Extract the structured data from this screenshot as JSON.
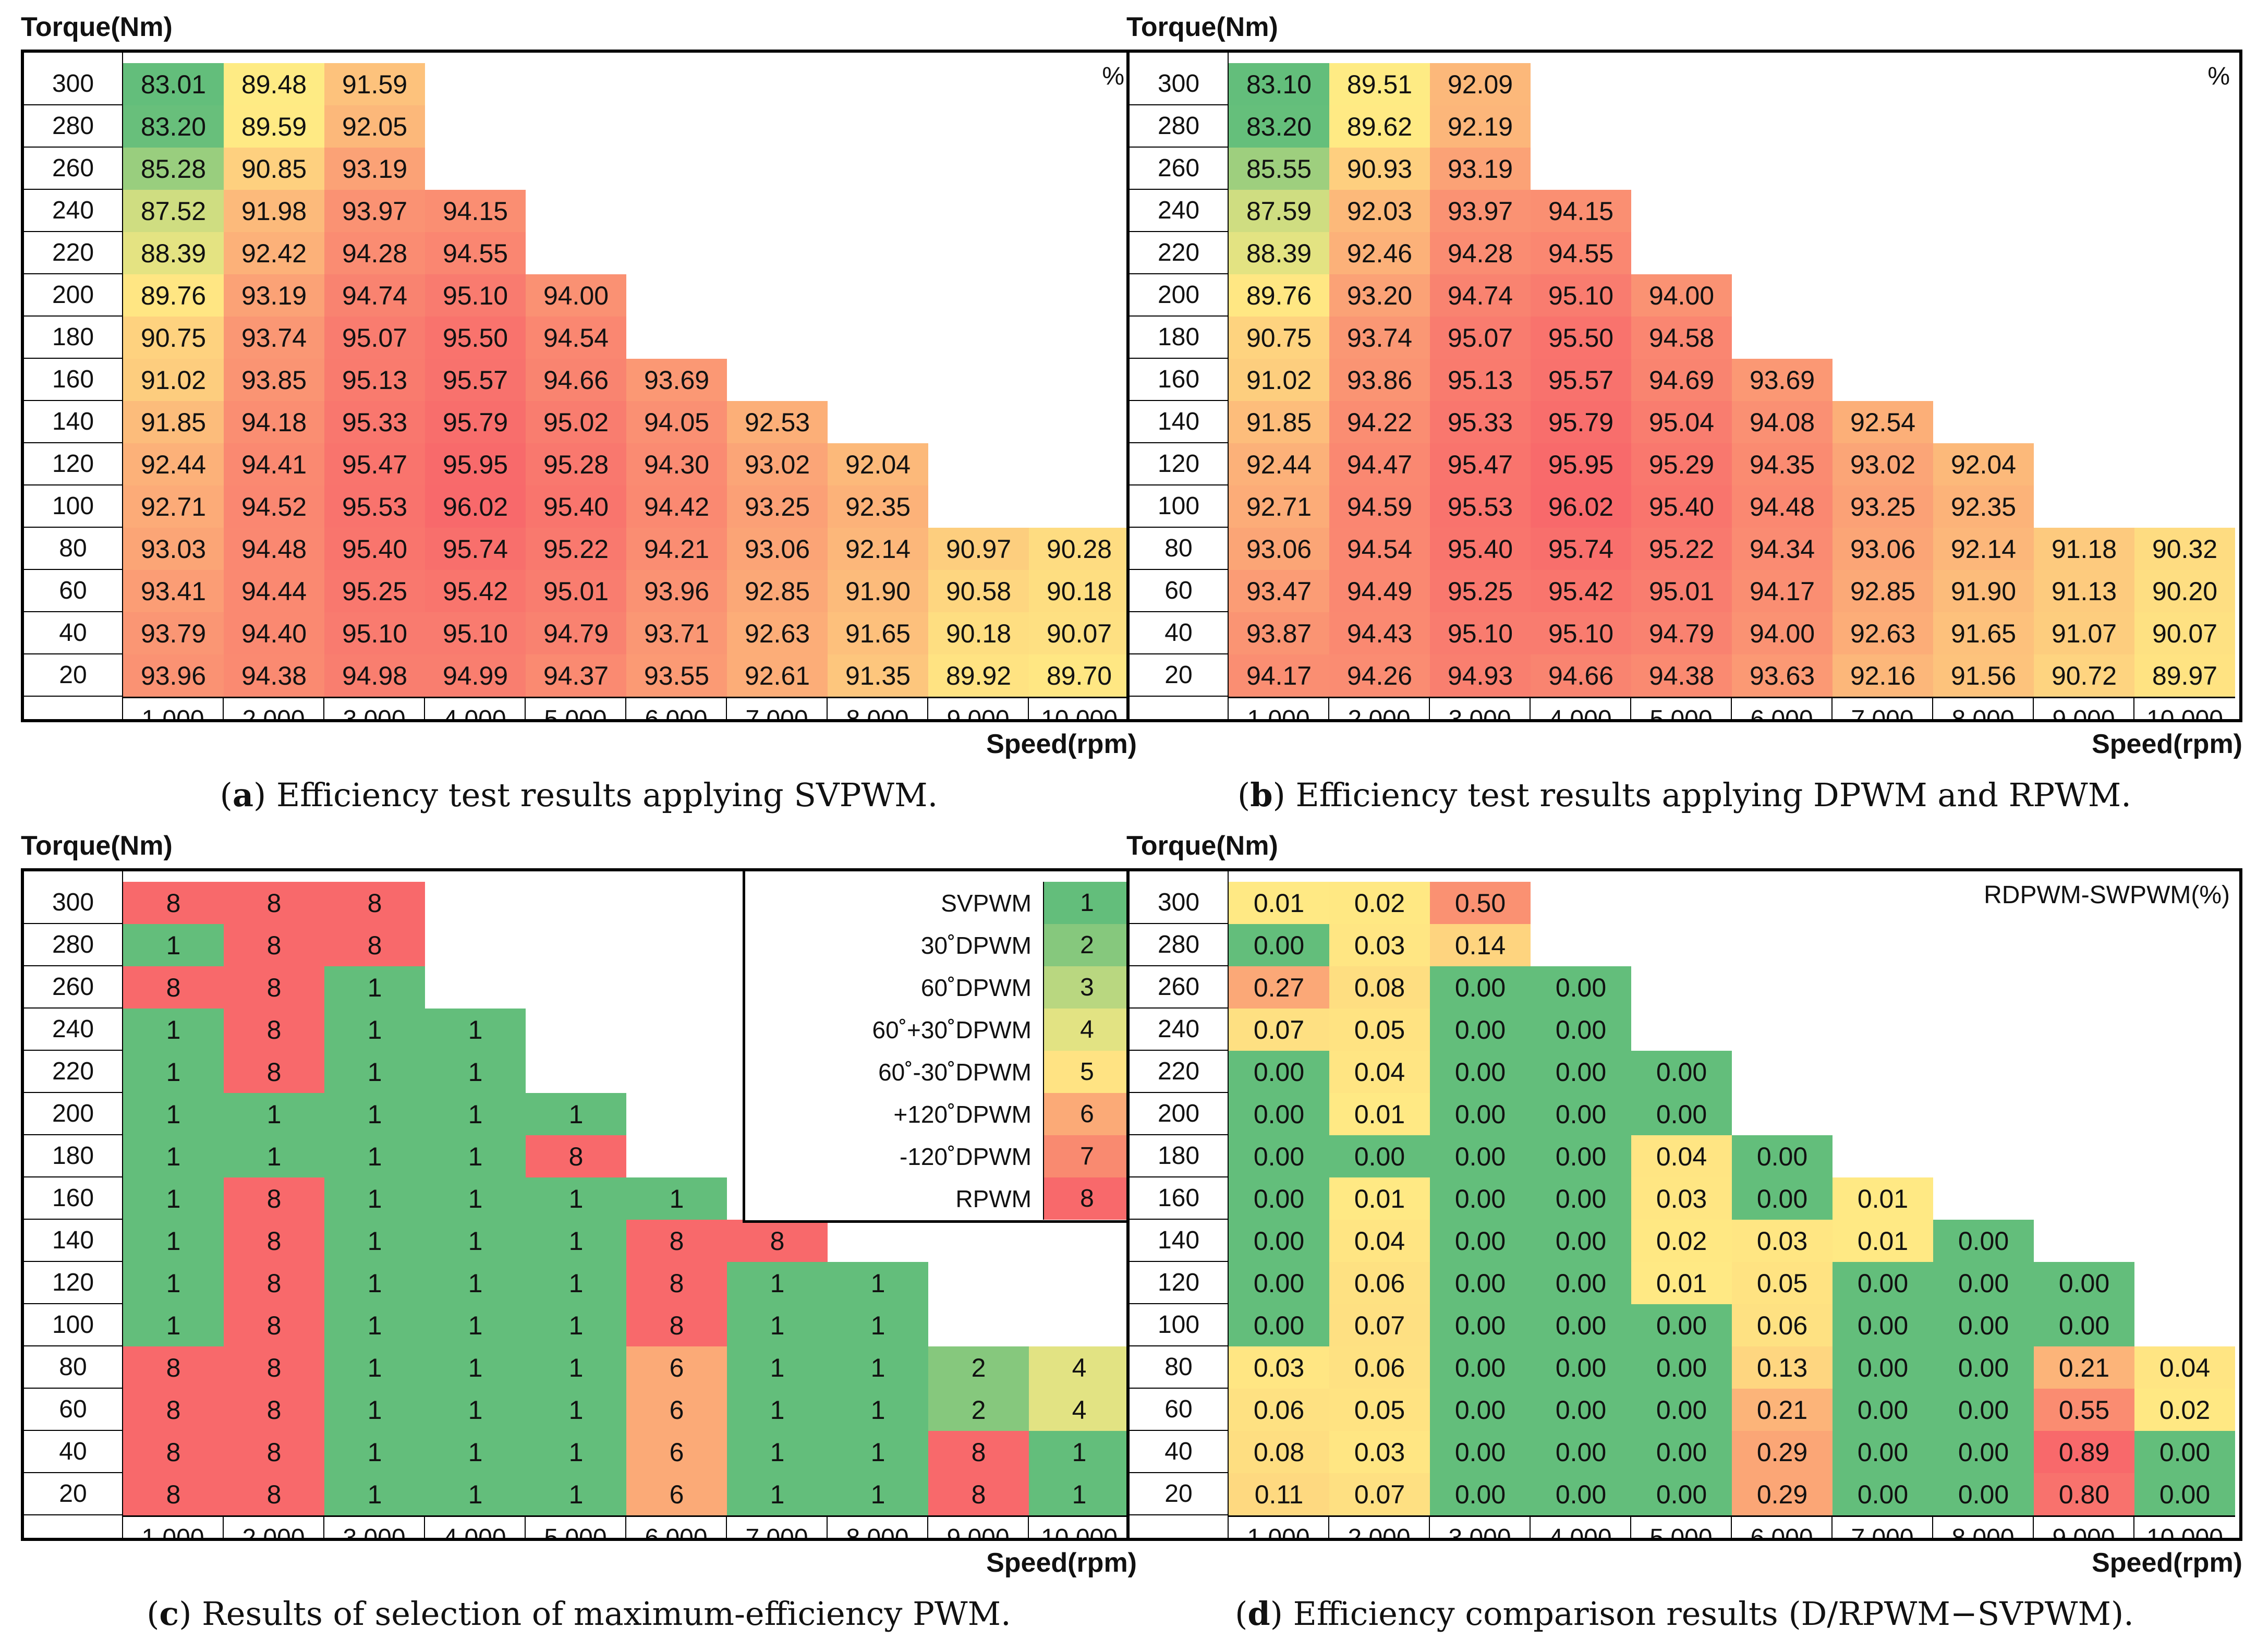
{
  "colors": {
    "green": "#63BE7B",
    "yellow": "#FFEB84",
    "red": "#F8696B"
  },
  "chart_data": [
    {
      "id": "a",
      "type": "heatmap",
      "title": "Efficiency test results applying SVPWM.",
      "caption_letter": "a",
      "ylabel": "Torque(Nm)",
      "xlabel": "Speed(rpm)",
      "unit": "%",
      "y": [
        "300",
        "280",
        "260",
        "240",
        "220",
        "200",
        "180",
        "160",
        "140",
        "120",
        "100",
        "80",
        "60",
        "40",
        "20"
      ],
      "x": [
        "1,000",
        "2,000",
        "3,000",
        "4,000",
        "5,000",
        "6,000",
        "7,000",
        "8,000",
        "9,000",
        "10,000"
      ],
      "values": [
        [
          83.01,
          89.48,
          91.59,
          null,
          null,
          null,
          null,
          null,
          null,
          null
        ],
        [
          83.2,
          89.59,
          92.05,
          null,
          null,
          null,
          null,
          null,
          null,
          null
        ],
        [
          85.28,
          90.85,
          93.19,
          null,
          null,
          null,
          null,
          null,
          null,
          null
        ],
        [
          87.52,
          91.98,
          93.97,
          94.15,
          null,
          null,
          null,
          null,
          null,
          null
        ],
        [
          88.39,
          92.42,
          94.28,
          94.55,
          null,
          null,
          null,
          null,
          null,
          null
        ],
        [
          89.76,
          93.19,
          94.74,
          95.1,
          94.0,
          null,
          null,
          null,
          null,
          null
        ],
        [
          90.75,
          93.74,
          95.07,
          95.5,
          94.54,
          null,
          null,
          null,
          null,
          null
        ],
        [
          91.02,
          93.85,
          95.13,
          95.57,
          94.66,
          93.69,
          null,
          null,
          null,
          null
        ],
        [
          91.85,
          94.18,
          95.33,
          95.79,
          95.02,
          94.05,
          92.53,
          null,
          null,
          null
        ],
        [
          92.44,
          94.41,
          95.47,
          95.95,
          95.28,
          94.3,
          93.02,
          92.04,
          null,
          null
        ],
        [
          92.71,
          94.52,
          95.53,
          96.02,
          95.4,
          94.42,
          93.25,
          92.35,
          null,
          null
        ],
        [
          93.03,
          94.48,
          95.4,
          95.74,
          95.22,
          94.21,
          93.06,
          92.14,
          90.97,
          90.28
        ],
        [
          93.41,
          94.44,
          95.25,
          95.42,
          95.01,
          93.96,
          92.85,
          91.9,
          90.58,
          90.18
        ],
        [
          93.79,
          94.4,
          95.1,
          95.1,
          94.79,
          93.71,
          92.63,
          91.65,
          90.18,
          90.07
        ],
        [
          93.96,
          94.38,
          94.98,
          94.99,
          94.37,
          93.55,
          92.61,
          91.35,
          89.92,
          89.7
        ]
      ]
    },
    {
      "id": "b",
      "type": "heatmap",
      "title": "Efficiency test results applying DPWM and RPWM.",
      "caption_letter": "b",
      "ylabel": "Torque(Nm)",
      "xlabel": "Speed(rpm)",
      "unit": "%",
      "y": [
        "300",
        "280",
        "260",
        "240",
        "220",
        "200",
        "180",
        "160",
        "140",
        "120",
        "100",
        "80",
        "60",
        "40",
        "20"
      ],
      "x": [
        "1,000",
        "2,000",
        "3,000",
        "4,000",
        "5,000",
        "6,000",
        "7,000",
        "8,000",
        "9,000",
        "10,000"
      ],
      "values": [
        [
          83.1,
          89.51,
          92.09,
          null,
          null,
          null,
          null,
          null,
          null,
          null
        ],
        [
          83.2,
          89.62,
          92.19,
          null,
          null,
          null,
          null,
          null,
          null,
          null
        ],
        [
          85.55,
          90.93,
          93.19,
          null,
          null,
          null,
          null,
          null,
          null,
          null
        ],
        [
          87.59,
          92.03,
          93.97,
          94.15,
          null,
          null,
          null,
          null,
          null,
          null
        ],
        [
          88.39,
          92.46,
          94.28,
          94.55,
          null,
          null,
          null,
          null,
          null,
          null
        ],
        [
          89.76,
          93.2,
          94.74,
          95.1,
          94.0,
          null,
          null,
          null,
          null,
          null
        ],
        [
          90.75,
          93.74,
          95.07,
          95.5,
          94.58,
          null,
          null,
          null,
          null,
          null
        ],
        [
          91.02,
          93.86,
          95.13,
          95.57,
          94.69,
          93.69,
          null,
          null,
          null,
          null
        ],
        [
          91.85,
          94.22,
          95.33,
          95.79,
          95.04,
          94.08,
          92.54,
          null,
          null,
          null
        ],
        [
          92.44,
          94.47,
          95.47,
          95.95,
          95.29,
          94.35,
          93.02,
          92.04,
          null,
          null
        ],
        [
          92.71,
          94.59,
          95.53,
          96.02,
          95.4,
          94.48,
          93.25,
          92.35,
          null,
          null
        ],
        [
          93.06,
          94.54,
          95.4,
          95.74,
          95.22,
          94.34,
          93.06,
          92.14,
          91.18,
          90.32
        ],
        [
          93.47,
          94.49,
          95.25,
          95.42,
          95.01,
          94.17,
          92.85,
          91.9,
          91.13,
          90.2
        ],
        [
          93.87,
          94.43,
          95.1,
          95.1,
          94.79,
          94.0,
          92.63,
          91.65,
          91.07,
          90.07
        ],
        [
          94.17,
          94.26,
          94.93,
          94.66,
          94.38,
          93.63,
          92.16,
          91.56,
          90.72,
          89.97
        ]
      ]
    },
    {
      "id": "c",
      "type": "heatmap",
      "title": "Results of selection of maximum-efficiency PWM.",
      "caption_letter": "c",
      "ylabel": "Torque(Nm)",
      "xlabel": "Speed(rpm)",
      "y": [
        "300",
        "280",
        "260",
        "240",
        "220",
        "200",
        "180",
        "160",
        "140",
        "120",
        "100",
        "80",
        "60",
        "40",
        "20"
      ],
      "x": [
        "1,000",
        "2,000",
        "3,000",
        "4,000",
        "5,000",
        "6,000",
        "7,000",
        "8,000",
        "9,000",
        "10,000"
      ],
      "values": [
        [
          8,
          8,
          8,
          null,
          null,
          null,
          null,
          null,
          null,
          null
        ],
        [
          1,
          8,
          8,
          null,
          null,
          null,
          null,
          null,
          null,
          null
        ],
        [
          8,
          8,
          1,
          null,
          null,
          null,
          null,
          null,
          null,
          null
        ],
        [
          1,
          8,
          1,
          1,
          null,
          null,
          null,
          null,
          null,
          null
        ],
        [
          1,
          8,
          1,
          1,
          null,
          null,
          null,
          null,
          null,
          null
        ],
        [
          1,
          1,
          1,
          1,
          1,
          null,
          null,
          null,
          null,
          null
        ],
        [
          1,
          1,
          1,
          1,
          8,
          null,
          null,
          null,
          null,
          null
        ],
        [
          1,
          8,
          1,
          1,
          1,
          1,
          null,
          null,
          null,
          null
        ],
        [
          1,
          8,
          1,
          1,
          1,
          8,
          8,
          null,
          null,
          null
        ],
        [
          1,
          8,
          1,
          1,
          1,
          8,
          1,
          1,
          null,
          null
        ],
        [
          1,
          8,
          1,
          1,
          1,
          8,
          1,
          1,
          null,
          null
        ],
        [
          8,
          8,
          1,
          1,
          1,
          6,
          1,
          1,
          2,
          4
        ],
        [
          8,
          8,
          1,
          1,
          1,
          6,
          1,
          1,
          2,
          4
        ],
        [
          8,
          8,
          1,
          1,
          1,
          6,
          1,
          1,
          8,
          1
        ],
        [
          8,
          8,
          1,
          1,
          1,
          6,
          1,
          1,
          8,
          1
        ]
      ],
      "legend": [
        {
          "label": "SVPWM",
          "code": 1,
          "color": "#63BE7B"
        },
        {
          "label": "30˚DPWM",
          "code": 2,
          "color": "#86C87D"
        },
        {
          "label": "60˚DPWM",
          "code": 3,
          "color": "#B9D780"
        },
        {
          "label": "60˚+30˚DPWM",
          "code": 4,
          "color": "#E2E383"
        },
        {
          "label": "60˚-30˚DPWM",
          "code": 5,
          "color": "#FFE383"
        },
        {
          "label": "+120˚DPWM",
          "code": 6,
          "color": "#FBAA77"
        },
        {
          "label": "-120˚DPWM",
          "code": 7,
          "color": "#F98A70"
        },
        {
          "label": "RPWM",
          "code": 8,
          "color": "#F8696B"
        }
      ]
    },
    {
      "id": "d",
      "type": "heatmap",
      "title": "Efficiency comparison results (D/RPWM−SVPWM).",
      "caption_letter": "d",
      "ylabel": "Torque(Nm)",
      "xlabel": "Speed(rpm)",
      "unit": "RDPWM-SWPWM(%)",
      "y": [
        "300",
        "280",
        "260",
        "240",
        "220",
        "200",
        "180",
        "160",
        "140",
        "120",
        "100",
        "80",
        "60",
        "40",
        "20"
      ],
      "x": [
        "1,000",
        "2,000",
        "3,000",
        "4,000",
        "5,000",
        "6,000",
        "7,000",
        "8,000",
        "9,000",
        "10,000"
      ],
      "values": [
        [
          0.01,
          0.02,
          0.5,
          null,
          null,
          null,
          null,
          null,
          null,
          null
        ],
        [
          0.0,
          0.03,
          0.14,
          null,
          null,
          null,
          null,
          null,
          null,
          null
        ],
        [
          0.27,
          0.08,
          0.0,
          0.0,
          null,
          null,
          null,
          null,
          null,
          null
        ],
        [
          0.07,
          0.05,
          0.0,
          0.0,
          null,
          null,
          null,
          null,
          null,
          null
        ],
        [
          0.0,
          0.04,
          0.0,
          0.0,
          0.0,
          null,
          null,
          null,
          null,
          null
        ],
        [
          0.0,
          0.01,
          0.0,
          0.0,
          0.0,
          null,
          null,
          null,
          null,
          null
        ],
        [
          0.0,
          0.0,
          0.0,
          0.0,
          0.04,
          0.0,
          null,
          null,
          null,
          null
        ],
        [
          0.0,
          0.01,
          0.0,
          0.0,
          0.03,
          0.0,
          0.01,
          null,
          null,
          null
        ],
        [
          0.0,
          0.04,
          0.0,
          0.0,
          0.02,
          0.03,
          0.01,
          0.0,
          null,
          null
        ],
        [
          0.0,
          0.06,
          0.0,
          0.0,
          0.01,
          0.05,
          0.0,
          0.0,
          0.0,
          null
        ],
        [
          0.0,
          0.07,
          0.0,
          0.0,
          0.0,
          0.06,
          0.0,
          0.0,
          0.0,
          null
        ],
        [
          0.03,
          0.06,
          0.0,
          0.0,
          0.0,
          0.13,
          0.0,
          0.0,
          0.21,
          0.04
        ],
        [
          0.06,
          0.05,
          0.0,
          0.0,
          0.0,
          0.21,
          0.0,
          0.0,
          0.55,
          0.02
        ],
        [
          0.08,
          0.03,
          0.0,
          0.0,
          0.0,
          0.29,
          0.0,
          0.0,
          0.89,
          0.0
        ],
        [
          0.11,
          0.07,
          0.0,
          0.0,
          0.0,
          0.29,
          0.0,
          0.0,
          0.8,
          0.0
        ]
      ]
    }
  ]
}
